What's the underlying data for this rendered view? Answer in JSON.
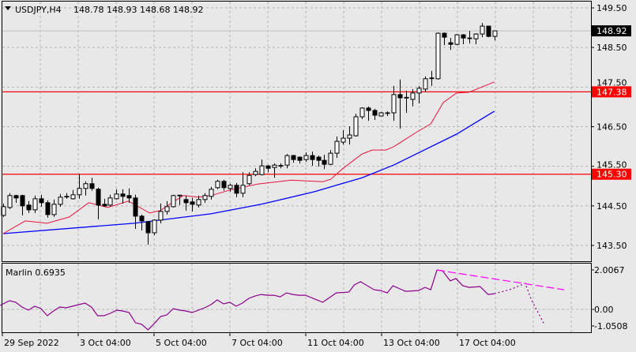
{
  "header": {
    "symbol": "USDJPY,H4",
    "ohlc": "148.78 148.93 148.68 148.92",
    "menu_icon": "triangle-down-icon"
  },
  "colors": {
    "background": "#e8e8e8",
    "grid": "#b4b4b4",
    "frame": "#000000",
    "bull_body": "#ffffff",
    "bear_body": "#000000",
    "fast_ma": "#e8143c",
    "slow_ma": "#0000ff",
    "level_line": "#ff0000",
    "bid_line": "#c0c0c0",
    "marlin_line": "#8b008b",
    "marlin_trendline": "#ff00ff"
  },
  "price_axis": {
    "ticks": [
      "149.50",
      "148.50",
      "147.50",
      "146.50",
      "145.50",
      "144.50",
      "143.50"
    ],
    "current_price": "148.92"
  },
  "levels": [
    {
      "label": "147.38",
      "value": 147.38
    },
    {
      "label": "145.30",
      "value": 145.3
    }
  ],
  "time_axis": {
    "labels": [
      "29 Sep 2022",
      "3 Oct 04:00",
      "5 Oct 04:00",
      "7 Oct 04:00",
      "11 Oct 04:00",
      "13 Oct 04:00",
      "17 Oct 04:00"
    ]
  },
  "indicator": {
    "name": "Marlin 0.6935",
    "axis_labels": [
      "2.0067",
      "0.00",
      "-1.0508"
    ]
  },
  "chart_data": {
    "type": "candlestick",
    "symbol": "USDJPY",
    "timeframe": "H4",
    "ylim": [
      143.3,
      149.65
    ],
    "grid": true,
    "candles_ohlc": [
      [
        144.26,
        144.56,
        144.22,
        144.48
      ],
      [
        144.46,
        144.82,
        144.42,
        144.76
      ],
      [
        144.76,
        144.78,
        144.58,
        144.7
      ],
      [
        144.76,
        144.78,
        144.26,
        144.5
      ],
      [
        144.52,
        144.62,
        144.32,
        144.4
      ],
      [
        144.4,
        144.76,
        144.32,
        144.68
      ],
      [
        144.68,
        144.78,
        144.48,
        144.58
      ],
      [
        144.58,
        144.64,
        144.2,
        144.28
      ],
      [
        144.28,
        144.66,
        144.22,
        144.54
      ],
      [
        144.54,
        144.8,
        144.48,
        144.72
      ],
      [
        144.73,
        144.82,
        144.68,
        144.74
      ],
      [
        144.68,
        144.9,
        144.66,
        144.78
      ],
      [
        144.78,
        145.31,
        144.68,
        144.94
      ],
      [
        144.94,
        145.12,
        144.76,
        145.06
      ],
      [
        145.06,
        145.21,
        144.88,
        144.94
      ],
      [
        144.92,
        144.96,
        144.16,
        144.52
      ],
      [
        144.54,
        144.68,
        144.48,
        144.5
      ],
      [
        144.52,
        144.78,
        144.48,
        144.7
      ],
      [
        144.68,
        144.92,
        144.66,
        144.8
      ],
      [
        144.8,
        144.92,
        144.56,
        144.74
      ],
      [
        144.76,
        144.94,
        144.58,
        144.7
      ],
      [
        144.7,
        144.78,
        143.92,
        144.24
      ],
      [
        144.24,
        144.28,
        143.88,
        144.12
      ],
      [
        144.1,
        144.12,
        143.52,
        143.82
      ],
      [
        143.82,
        144.16,
        143.76,
        144.14
      ],
      [
        144.14,
        144.56,
        144.06,
        144.36
      ],
      [
        144.36,
        144.62,
        144.28,
        144.48
      ],
      [
        144.48,
        144.78,
        144.46,
        144.76
      ],
      [
        144.76,
        144.78,
        144.52,
        144.77
      ],
      [
        144.66,
        144.76,
        144.38,
        144.58
      ],
      [
        144.6,
        144.7,
        144.36,
        144.54
      ],
      [
        144.52,
        144.76,
        144.46,
        144.66
      ],
      [
        144.66,
        144.82,
        144.58,
        144.76
      ],
      [
        144.74,
        144.98,
        144.66,
        144.92
      ],
      [
        144.96,
        145.16,
        144.92,
        145.12
      ],
      [
        145.12,
        145.16,
        144.88,
        144.96
      ],
      [
        144.94,
        145.06,
        144.86,
        145.02
      ],
      [
        145.02,
        145.08,
        144.72,
        144.82
      ],
      [
        144.82,
        145.35,
        144.72,
        145.02
      ],
      [
        145.06,
        145.35,
        145.02,
        145.27
      ],
      [
        145.29,
        145.45,
        145.25,
        145.37
      ],
      [
        145.29,
        145.67,
        145.27,
        145.51
      ],
      [
        145.51,
        145.53,
        145.35,
        145.45
      ],
      [
        145.47,
        145.57,
        145.21,
        145.53
      ],
      [
        145.52,
        145.57,
        145.45,
        145.51
      ],
      [
        145.53,
        145.81,
        145.45,
        145.77
      ],
      [
        145.77,
        145.79,
        145.59,
        145.67
      ],
      [
        145.73,
        145.75,
        145.57,
        145.65
      ],
      [
        145.67,
        145.85,
        145.61,
        145.77
      ],
      [
        145.77,
        145.87,
        145.51,
        145.67
      ],
      [
        145.73,
        145.77,
        145.49,
        145.65
      ],
      [
        145.65,
        145.79,
        145.43,
        145.55
      ],
      [
        145.55,
        145.91,
        145.53,
        145.83
      ],
      [
        145.83,
        146.25,
        145.71,
        146.13
      ],
      [
        146.11,
        146.41,
        146.05,
        146.21
      ],
      [
        146.21,
        146.51,
        146.05,
        146.29
      ],
      [
        146.27,
        146.83,
        146.25,
        146.75
      ],
      [
        146.75,
        146.99,
        146.69,
        146.97
      ],
      [
        146.97,
        147.01,
        146.65,
        146.91
      ],
      [
        146.91,
        146.95,
        146.67,
        146.79
      ],
      [
        146.77,
        146.87,
        146.77,
        146.85
      ],
      [
        146.84,
        146.89,
        146.77,
        146.85
      ],
      [
        146.85,
        147.53,
        146.65,
        147.31
      ],
      [
        147.31,
        147.69,
        146.45,
        147.23
      ],
      [
        147.24,
        147.41,
        146.85,
        147.23
      ],
      [
        147.19,
        147.45,
        147.01,
        147.35
      ],
      [
        147.35,
        147.53,
        147.09,
        147.47
      ],
      [
        147.45,
        147.77,
        147.37,
        147.71
      ],
      [
        147.72,
        147.91,
        147.53,
        147.73
      ],
      [
        147.71,
        148.88,
        147.69,
        148.86
      ],
      [
        148.86,
        148.88,
        148.56,
        148.76
      ],
      [
        148.62,
        148.74,
        148.44,
        148.58
      ],
      [
        148.58,
        148.84,
        148.56,
        148.82
      ],
      [
        148.82,
        148.84,
        148.58,
        148.74
      ],
      [
        148.74,
        148.92,
        148.6,
        148.73
      ],
      [
        148.72,
        148.86,
        148.58,
        148.84
      ],
      [
        148.84,
        149.12,
        148.76,
        149.04
      ],
      [
        149.04,
        149.04,
        148.76,
        148.78
      ],
      [
        148.78,
        148.93,
        148.68,
        148.92
      ]
    ],
    "fast_ma_points_bar_value": [
      [
        0,
        143.8
      ],
      [
        3.5,
        144.12
      ],
      [
        7,
        144.06
      ],
      [
        10.5,
        144.22
      ],
      [
        13.6,
        144.58
      ],
      [
        16.6,
        144.46
      ],
      [
        19.9,
        144.62
      ],
      [
        23.25,
        144.32
      ],
      [
        24.9,
        144.38
      ],
      [
        28.6,
        144.76
      ],
      [
        31,
        144.72
      ],
      [
        33,
        144.76
      ],
      [
        36,
        144.9
      ],
      [
        40.4,
        145.05
      ],
      [
        45.75,
        145.15
      ],
      [
        50.75,
        145.11
      ],
      [
        52,
        145.17
      ],
      [
        54,
        145.45
      ],
      [
        57,
        145.81
      ],
      [
        58.6,
        145.91
      ],
      [
        60.75,
        145.91
      ],
      [
        62,
        145.99
      ],
      [
        65.75,
        146.37
      ],
      [
        67.9,
        146.57
      ],
      [
        69.9,
        147.11
      ],
      [
        72,
        147.35
      ],
      [
        74,
        147.37
      ],
      [
        78,
        147.63
      ]
    ],
    "slow_ma_points_bar_value": [
      [
        0,
        143.8
      ],
      [
        20.8,
        144.06
      ],
      [
        33,
        144.3
      ],
      [
        41,
        144.54
      ],
      [
        49.5,
        144.86
      ],
      [
        52.9,
        145.02
      ],
      [
        57,
        145.21
      ],
      [
        62,
        145.53
      ],
      [
        72,
        146.31
      ],
      [
        78,
        146.89
      ]
    ],
    "marlin": {
      "ylim": [
        -1.3,
        2.1
      ],
      "points_bar_value": [
        [
          -0.5,
          0.2
        ],
        [
          1,
          0.44
        ],
        [
          2,
          0.36
        ],
        [
          3,
          0.12
        ],
        [
          4,
          -0.04
        ],
        [
          5,
          0.16
        ],
        [
          6,
          0.04
        ],
        [
          7,
          -0.32
        ],
        [
          8,
          -0.08
        ],
        [
          9,
          0.12
        ],
        [
          10,
          0.08
        ],
        [
          12,
          0.24
        ],
        [
          13,
          0.32
        ],
        [
          14,
          0.12
        ],
        [
          15,
          -0.32
        ],
        [
          16,
          -0.32
        ],
        [
          17,
          -0.2
        ],
        [
          18,
          -0.04
        ],
        [
          19,
          -0.08
        ],
        [
          20,
          -0.16
        ],
        [
          21,
          -0.68
        ],
        [
          22,
          -0.76
        ],
        [
          23,
          -1.04
        ],
        [
          24,
          -0.72
        ],
        [
          25,
          -0.36
        ],
        [
          26,
          -0.28
        ],
        [
          27,
          0.04
        ],
        [
          28,
          -0.04
        ],
        [
          29,
          -0.08
        ],
        [
          30,
          -0.16
        ],
        [
          31,
          -0.04
        ],
        [
          32,
          0.08
        ],
        [
          33,
          0.24
        ],
        [
          34,
          0.48
        ],
        [
          35,
          0.28
        ],
        [
          36,
          0.36
        ],
        [
          37,
          0.16
        ],
        [
          38,
          0.32
        ],
        [
          39,
          0.56
        ],
        [
          40,
          0.68
        ],
        [
          41,
          0.76
        ],
        [
          42,
          0.72
        ],
        [
          43,
          0.72
        ],
        [
          44,
          0.64
        ],
        [
          45,
          0.84
        ],
        [
          46,
          0.76
        ],
        [
          47,
          0.72
        ],
        [
          48,
          0.72
        ],
        [
          50.75,
          0.36
        ],
        [
          52.9,
          0.84
        ],
        [
          54.9,
          0.88
        ],
        [
          55.75,
          1.24
        ],
        [
          56.75,
          1.41
        ],
        [
          58.9,
          1.0
        ],
        [
          59.9,
          0.96
        ],
        [
          61,
          0.84
        ],
        [
          61.9,
          1.2
        ],
        [
          63.9,
          0.92
        ],
        [
          66,
          0.96
        ],
        [
          67,
          1.12
        ],
        [
          67.9,
          1.0
        ],
        [
          68.9,
          2.0
        ],
        [
          69.75,
          1.97
        ],
        [
          71,
          1.45
        ],
        [
          71.9,
          1.57
        ],
        [
          73,
          1.2
        ],
        [
          74,
          1.12
        ],
        [
          75.75,
          1.16
        ],
        [
          77,
          0.76
        ],
        [
          78,
          0.8
        ]
      ],
      "forecast_dotted_bar_value": [
        [
          78,
          0.8
        ],
        [
          80.4,
          1.0
        ],
        [
          82,
          1.2
        ],
        [
          82.9,
          1.33
        ],
        [
          83.9,
          0.48
        ],
        [
          86,
          -0.8
        ]
      ],
      "trendline_bar_value": [
        [
          68.9,
          2.0
        ],
        [
          89.1,
          1.0
        ]
      ]
    }
  }
}
